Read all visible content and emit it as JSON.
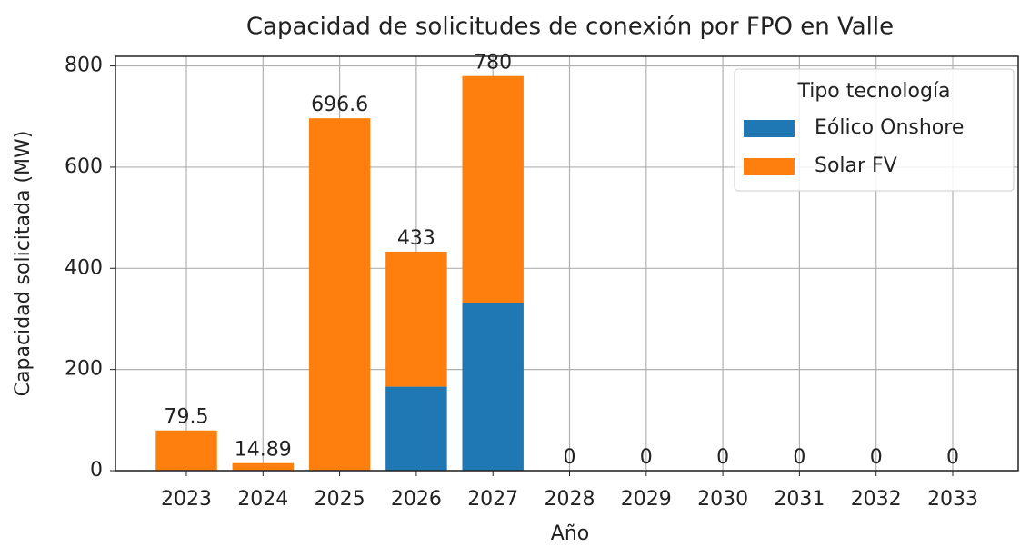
{
  "chart_data": {
    "type": "stacked_bar",
    "title": "Capacidad de solicitudes de conexión por FPO en Valle",
    "x_label": "Año",
    "y_label": "Capacidad solicitada (MW)",
    "categories": [
      "2023",
      "2024",
      "2025",
      "2026",
      "2027",
      "2028",
      "2029",
      "2030",
      "2031",
      "2032",
      "2033"
    ],
    "series": [
      {
        "name": "Eólico Onshore",
        "color": "#1f77b4",
        "values": [
          0,
          0,
          0,
          166,
          332,
          0,
          0,
          0,
          0,
          0,
          0
        ]
      },
      {
        "name": "Solar FV",
        "color": "#ff7f0e",
        "values": [
          79.5,
          14.89,
          696.6,
          267,
          448,
          0,
          0,
          0,
          0,
          0,
          0
        ]
      }
    ],
    "totals": [
      79.5,
      14.89,
      696.6,
      433,
      780,
      0,
      0,
      0,
      0,
      0,
      0
    ],
    "ylim": [
      0,
      819
    ],
    "yticks": [
      0,
      200,
      400,
      600,
      800
    ],
    "grid": true,
    "legend_title": "Tipo tecnología",
    "legend_position": "upper right"
  }
}
